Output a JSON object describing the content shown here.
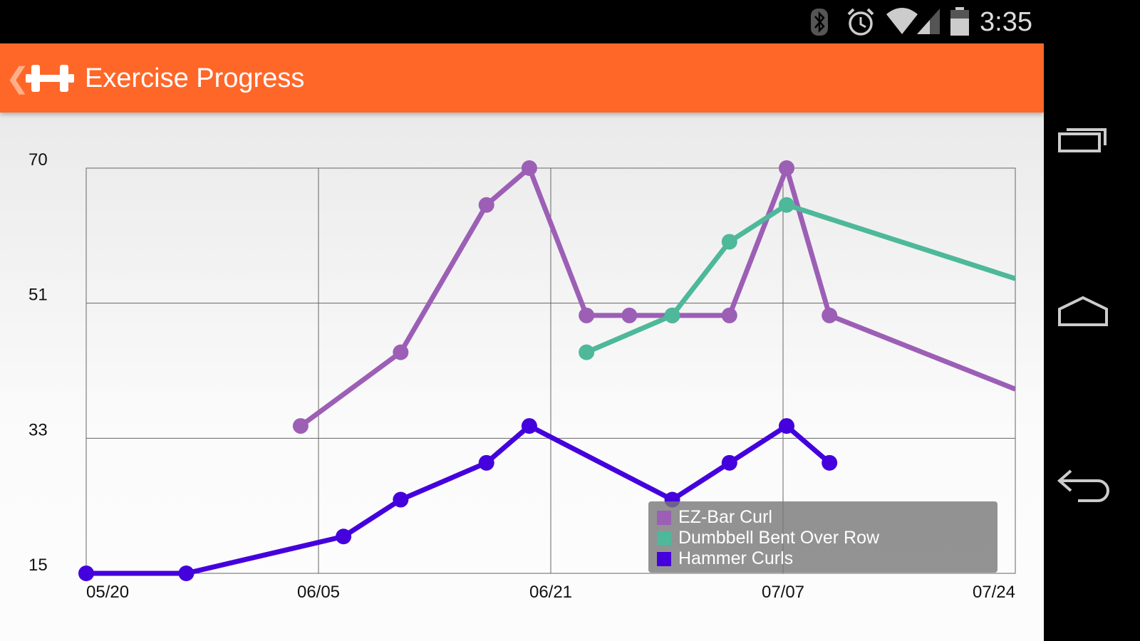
{
  "status_bar": {
    "time": "3:35",
    "icons": [
      "bluetooth-icon",
      "alarm-icon",
      "wifi-icon",
      "signal-icon",
      "battery-icon"
    ]
  },
  "app_bar": {
    "title": "Exercise Progress",
    "icon": "dumbbell-icon"
  },
  "nav_bar": {
    "icons": [
      "recent-apps-icon",
      "home-icon",
      "back-icon"
    ]
  },
  "chart_data": {
    "type": "line",
    "title": "",
    "xlabel": "",
    "ylabel": "",
    "x_range": [
      "05/20",
      "07/24"
    ],
    "x_ticks": [
      "05/20",
      "06/05",
      "06/21",
      "07/07",
      "07/24"
    ],
    "y_ticks": [
      "15",
      "33",
      "51",
      "70"
    ],
    "ylim": [
      15,
      70
    ],
    "grid": true,
    "legend_position": "bottom-right",
    "series": [
      {
        "name": "EZ-Bar Curl",
        "color": "#9c5fb5",
        "points": [
          [
            "06/04",
            35
          ],
          [
            "06/11",
            45
          ],
          [
            "06/17",
            65
          ],
          [
            "06/20",
            70
          ],
          [
            "06/24",
            50
          ],
          [
            "06/27",
            50
          ],
          [
            "06/30",
            50
          ],
          [
            "07/04",
            50
          ],
          [
            "07/08",
            70
          ],
          [
            "07/11",
            50
          ],
          [
            "07/24",
            40,
            "continues"
          ]
        ]
      },
      {
        "name": "Dumbbell Bent Over Row",
        "color": "#4db89a",
        "points": [
          [
            "06/24",
            45
          ],
          [
            "06/30",
            50
          ],
          [
            "07/04",
            60
          ],
          [
            "07/08",
            65
          ],
          [
            "07/24",
            55,
            "continues"
          ]
        ]
      },
      {
        "name": "Hammer Curls",
        "color": "#4400dd",
        "points": [
          [
            "05/20",
            15
          ],
          [
            "05/27",
            15
          ],
          [
            "06/07",
            20
          ],
          [
            "06/11",
            25
          ],
          [
            "06/17",
            30
          ],
          [
            "06/20",
            35
          ],
          [
            "06/30",
            25
          ],
          [
            "07/04",
            30
          ],
          [
            "07/08",
            35
          ],
          [
            "07/11",
            30
          ]
        ]
      }
    ]
  }
}
